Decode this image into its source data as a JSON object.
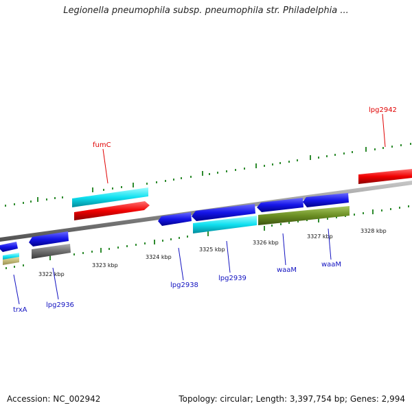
{
  "title": "Legionella pneumophila subsp. pneumophila str. Philadelphia ...",
  "footer": {
    "accession": "Accession: NC_002942",
    "summary": "Topology: circular; Length: 3,397,754 bp; Genes: 2,994"
  },
  "scale_labels": [
    "3322 kbp",
    "3323 kbp",
    "3324 kbp",
    "3325 kbp",
    "3326 kbp",
    "3327 kbp",
    "3328 kbp"
  ],
  "gene_labels": {
    "fumC": "fumC",
    "lpg2942": "lpg2942",
    "trxA": "trxA",
    "lpg2936": "lpg2936",
    "lpg2938": "lpg2938",
    "lpg2939": "lpg2939",
    "waaM_1": "waaM",
    "waaM_2": "waaM"
  },
  "colors": {
    "forward_cds": "#1010e0",
    "reverse_rna": "#e00000",
    "cyan_feature": "#10d8e8",
    "olive_feature": "#6b8e23",
    "gray_feature": "#707070",
    "tick": "#2e8b2e",
    "backbone": "#8a8a8a",
    "label_red": "#e00000",
    "label_blue": "#1010c0"
  }
}
